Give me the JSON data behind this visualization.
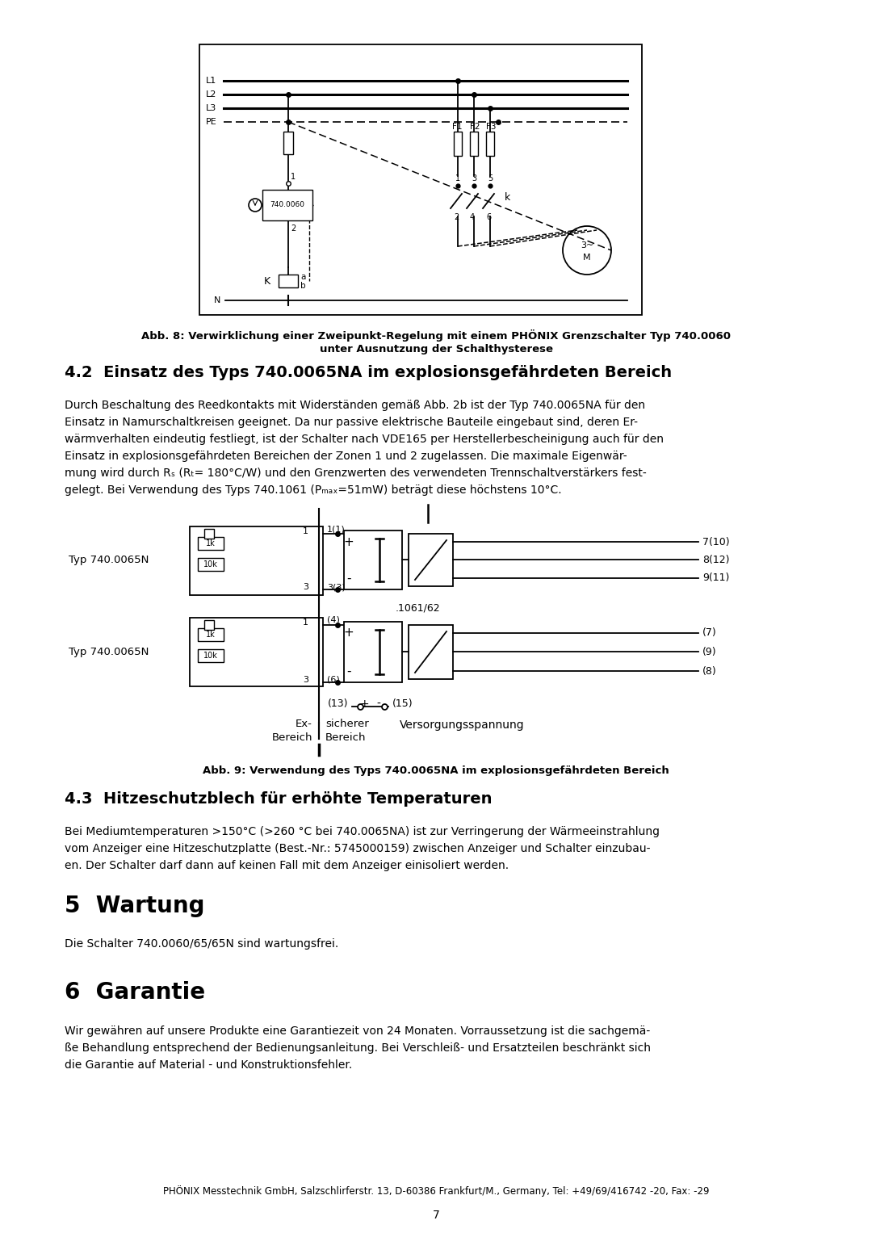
{
  "page_background": "#ffffff",
  "fig8_caption_line1": "Abb. 8: Verwirklichung einer Zweipunkt-Regelung mit einem PHÖNIX Grenzschalter Typ 740.0060",
  "fig8_caption_line2": "unter Ausnutzung der Schalthysterese",
  "section42_title": "4.2  Einsatz des Typs 740.0065NA im explosionsgefährdeten Bereich",
  "section42_para": "Durch Beschaltung des Reedkontakts mit Widerständen gemäß Abb. 2b ist der Typ 740.0065NA für den Einsatz in Namurschaltkreisen geeignet. Da nur passive elektrische Bauteile eingebaut sind, deren Er-wärmverhalten eindeutig festliegt, ist der Schalter nach VDE165 per Herstellerbescheinigung auch für den Einsatz in explosionsgefährdeten Bereichen der Zonen 1 und 2 zugelassen. Die maximale Eigenwär-mung wird durch RS (RT= 180°C/W) und den Grenzwerten des verwendeten Trennschaltverstärkers fest-gelegt. Bei Verwendung des Typs 740.1061 (Pmax=51mW) beträgt diese höchstens 10°C.",
  "fig9_caption": "Abb. 9: Verwendung des Typs 740.0065NA im explosionsgefährdeten Bereich",
  "section43_title": "4.3  Hitzeschutzblech für erhöhte Temperaturen",
  "section43_para": "Bei Mediumtemperaturen >150°C (>260 °C bei 740.0065NA) ist zur Verringerung der Wärmeeinstrahlung vom Anzeiger eine Hitzeschutzplatte (Best.-Nr.: 5745000159) zwischen Anzeiger und Schalter einzubauen. Der Schalter darf dann auf keinen Fall mit dem Anzeiger einisoliert werden.",
  "section5_title": "5  Wartung",
  "section5_para": "Die Schalter 740.0060/65/65N sind wartungsfrei.",
  "section6_title": "6  Garantie",
  "section6_para": "Wir gewähren auf unsere Produkte eine Garantiezeit von 24 Monaten. Vorraussetzung ist die sachgemä-ße Behandlung entsprechend der Bedienungsanleitung. Bei Verschleiß- und Ersatzteilen beschränkt sich die Garantie auf Material - und Konstruktionsfehler.",
  "footer": "PHÖNIX Messtechnik GmbH, Salzschlirferstr. 13, D-60386 Frankfurt/M., Germany, Tel: +49/69/416742 -20, Fax: -29",
  "page_num": "7"
}
